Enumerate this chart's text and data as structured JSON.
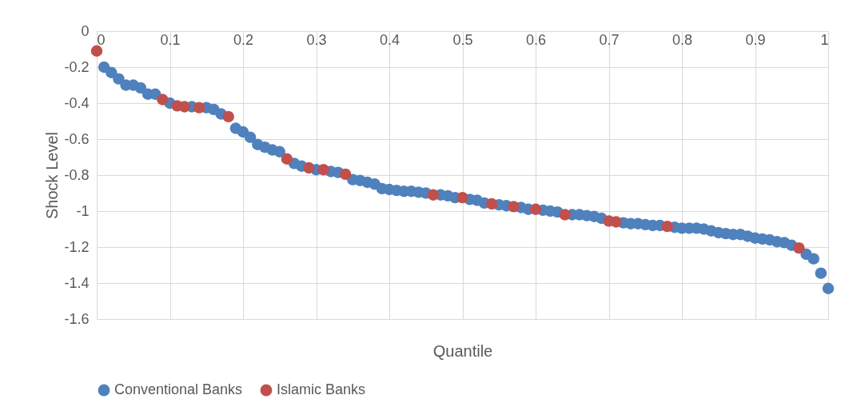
{
  "chart_data": {
    "type": "scatter",
    "xlabel": "Quantile",
    "ylabel": "Shock Level",
    "xlim": [
      0,
      1
    ],
    "xticks": [
      0,
      0.1,
      0.2,
      0.3,
      0.4,
      0.5,
      0.6,
      0.7,
      0.8,
      0.9,
      1
    ],
    "ylim": [
      -1.6,
      0
    ],
    "yticks": [
      0,
      -0.2,
      -0.4,
      -0.6,
      -0.8,
      -1,
      -1.2,
      -1.4,
      -1.6
    ],
    "grid": true,
    "legend": "bottom",
    "marker": "circle",
    "series": [
      {
        "name": "Conventional Banks",
        "color": "#4f81bd",
        "x": [
          0.01,
          0.02,
          0.03,
          0.04,
          0.05,
          0.06,
          0.07,
          0.08,
          0.1,
          0.13,
          0.15,
          0.16,
          0.17,
          0.19,
          0.2,
          0.21,
          0.22,
          0.23,
          0.24,
          0.25,
          0.27,
          0.28,
          0.3,
          0.32,
          0.33,
          0.35,
          0.36,
          0.37,
          0.38,
          0.39,
          0.4,
          0.41,
          0.42,
          0.43,
          0.44,
          0.45,
          0.47,
          0.48,
          0.49,
          0.51,
          0.52,
          0.53,
          0.55,
          0.56,
          0.58,
          0.59,
          0.61,
          0.62,
          0.63,
          0.65,
          0.66,
          0.67,
          0.68,
          0.69,
          0.72,
          0.73,
          0.74,
          0.75,
          0.76,
          0.77,
          0.79,
          0.8,
          0.81,
          0.82,
          0.83,
          0.84,
          0.85,
          0.86,
          0.87,
          0.88,
          0.89,
          0.9,
          0.91,
          0.92,
          0.93,
          0.94,
          0.95,
          0.97,
          0.98,
          0.99,
          1.0
        ],
        "values": [
          -0.2,
          -0.23,
          -0.265,
          -0.3,
          -0.3,
          -0.315,
          -0.35,
          -0.35,
          -0.4,
          -0.42,
          -0.425,
          -0.435,
          -0.46,
          -0.54,
          -0.56,
          -0.59,
          -0.63,
          -0.645,
          -0.66,
          -0.67,
          -0.735,
          -0.75,
          -0.77,
          -0.78,
          -0.785,
          -0.825,
          -0.83,
          -0.84,
          -0.85,
          -0.875,
          -0.88,
          -0.885,
          -0.89,
          -0.89,
          -0.895,
          -0.9,
          -0.91,
          -0.915,
          -0.925,
          -0.935,
          -0.94,
          -0.955,
          -0.965,
          -0.97,
          -0.98,
          -0.99,
          -0.995,
          -1.0,
          -1.005,
          -1.02,
          -1.02,
          -1.025,
          -1.03,
          -1.04,
          -1.065,
          -1.07,
          -1.07,
          -1.075,
          -1.08,
          -1.08,
          -1.09,
          -1.095,
          -1.095,
          -1.095,
          -1.1,
          -1.11,
          -1.12,
          -1.125,
          -1.13,
          -1.13,
          -1.14,
          -1.15,
          -1.155,
          -1.16,
          -1.17,
          -1.175,
          -1.19,
          -1.24,
          -1.265,
          -1.345,
          -1.43
        ]
      },
      {
        "name": "Islamic Banks",
        "color": "#c0504d",
        "x": [
          0,
          0.09,
          0.11,
          0.12,
          0.14,
          0.18,
          0.26,
          0.29,
          0.31,
          0.34,
          0.46,
          0.5,
          0.54,
          0.57,
          0.6,
          0.64,
          0.7,
          0.71,
          0.78,
          0.96
        ],
        "values": [
          -0.11,
          -0.38,
          -0.415,
          -0.42,
          -0.425,
          -0.475,
          -0.71,
          -0.76,
          -0.77,
          -0.795,
          -0.91,
          -0.925,
          -0.96,
          -0.975,
          -0.99,
          -1.02,
          -1.055,
          -1.06,
          -1.085,
          -1.205
        ]
      }
    ]
  }
}
